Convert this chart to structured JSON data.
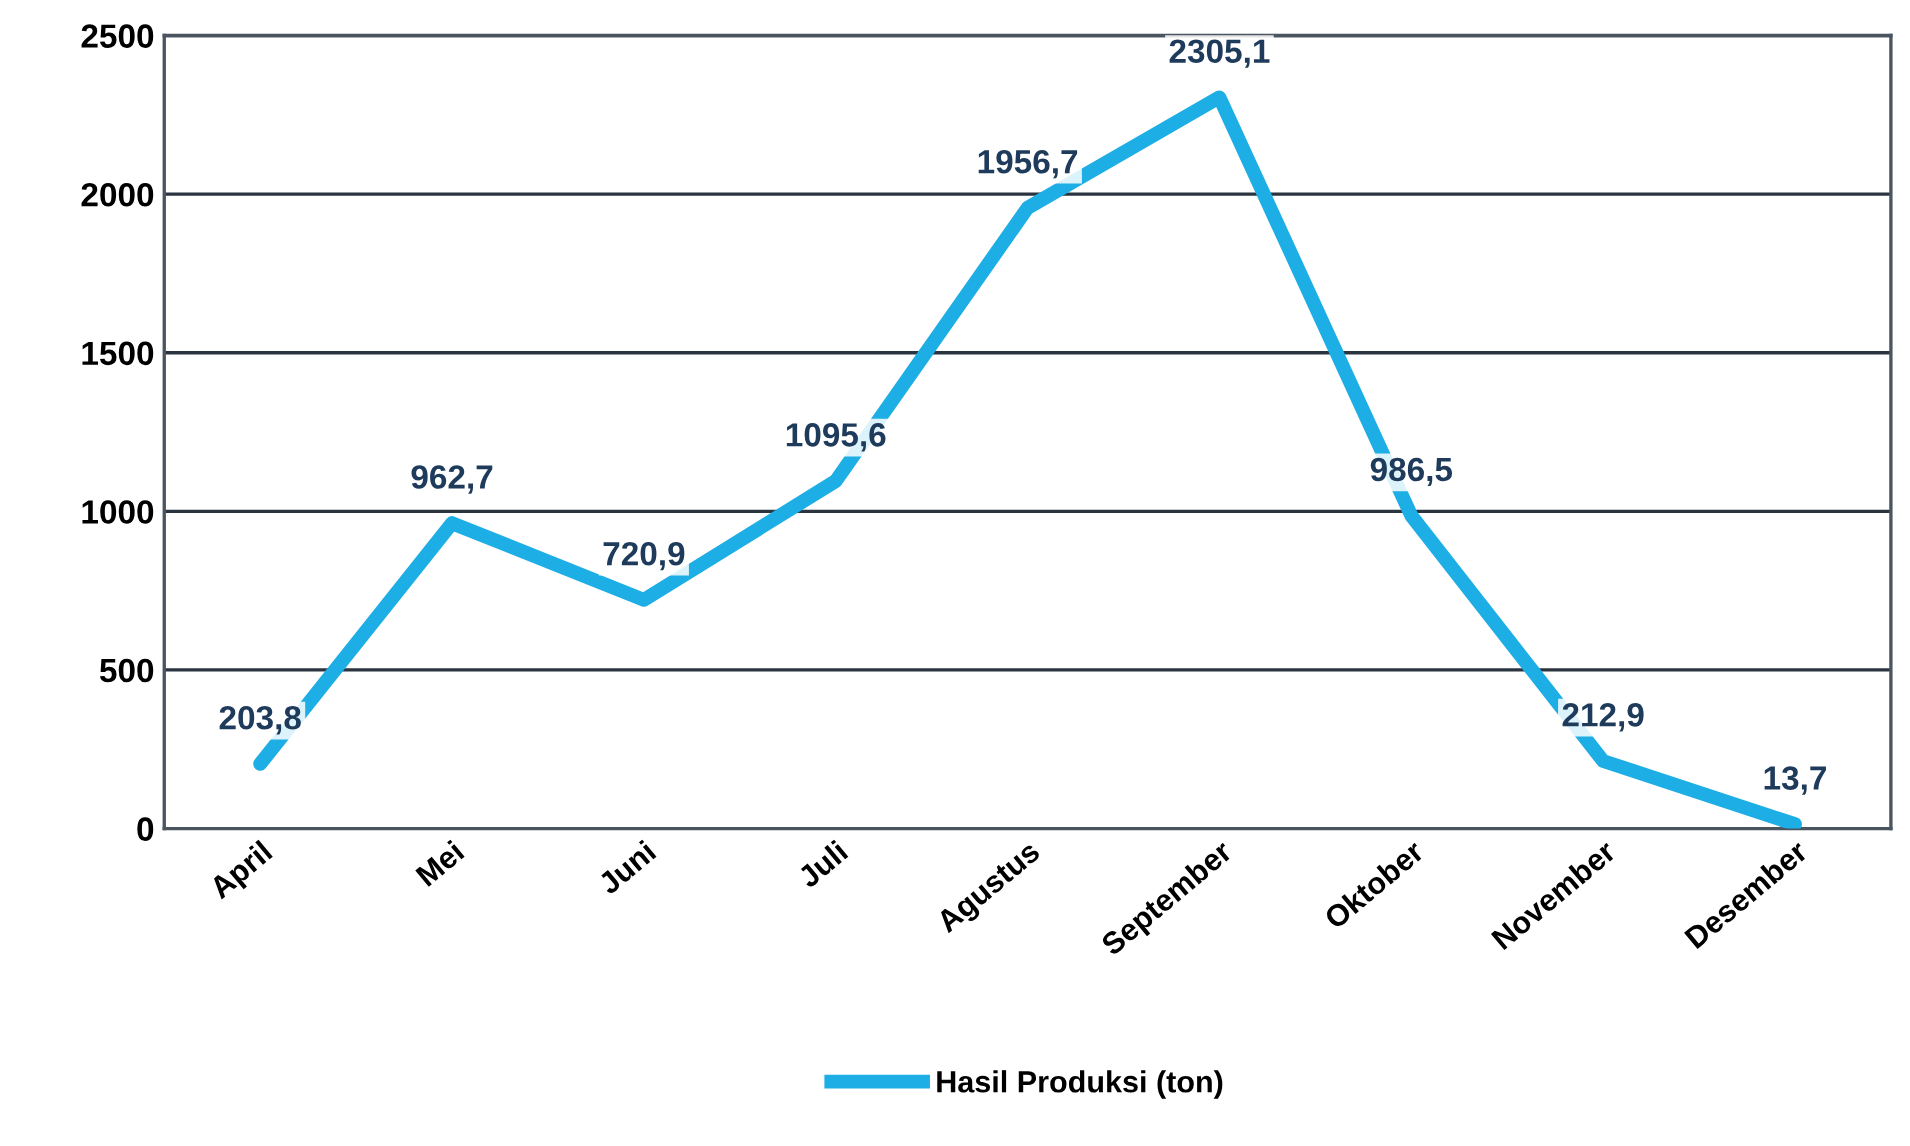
{
  "chart_data": {
    "type": "line",
    "categories": [
      "April",
      "Mei",
      "Juni",
      "Juli",
      "Agustus",
      "September",
      "Oktober",
      "November",
      "Desember"
    ],
    "series": [
      {
        "name": "Hasil Produksi (ton)",
        "color": "#1caee4",
        "values": [
          203.8,
          962.7,
          720.9,
          1095.6,
          1956.7,
          2305.1,
          986.5,
          212.9,
          13.7
        ],
        "value_labels": [
          "203,8",
          "962,7",
          "720,9",
          "1095,6",
          "1956,7",
          "2305,1",
          "986,5",
          "212,9",
          "13,7"
        ]
      }
    ],
    "ylim": [
      0,
      2500
    ],
    "yticks": [
      0,
      500,
      1000,
      1500,
      2000,
      2500
    ],
    "grid": "y",
    "legend": "bottom",
    "marker": "none",
    "line_style": "solid"
  }
}
